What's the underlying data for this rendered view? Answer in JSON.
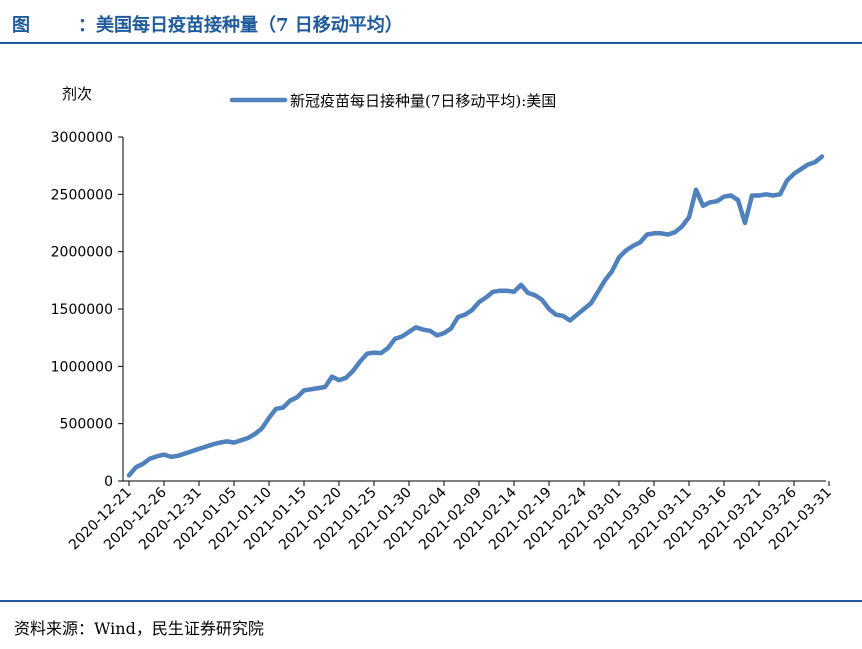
{
  "header": {
    "figure_label": "图",
    "title": "：美国每日疫苗接种量（7 日移动平均）"
  },
  "footer": {
    "source": "资料来源：Wind，民生证券研究院"
  },
  "colors": {
    "accent": "#1f5a9a",
    "series": "#4f81bd"
  },
  "chart_data": {
    "type": "line",
    "title": "美国每日疫苗接种量（7 日移动平均）",
    "ylabel": "剂次",
    "xlabel": "",
    "ylim": [
      0,
      3000000
    ],
    "yticks": [
      0,
      500000,
      1000000,
      1500000,
      2000000,
      2500000,
      3000000
    ],
    "ytick_labels": [
      "0",
      "500000",
      "1000000",
      "1500000",
      "2000000",
      "2500000",
      "3000000"
    ],
    "xtick_labels": [
      "2020-12-21",
      "2020-12-26",
      "2020-12-31",
      "2021-01-05",
      "2021-01-10",
      "2021-01-15",
      "2021-01-20",
      "2021-01-25",
      "2021-01-30",
      "2021-02-04",
      "2021-02-09",
      "2021-02-14",
      "2021-02-19",
      "2021-02-24",
      "2021-03-01",
      "2021-03-06",
      "2021-03-11",
      "2021-03-16",
      "2021-03-21",
      "2021-03-26",
      "2021-03-31"
    ],
    "grid": false,
    "legend_position": "top-center",
    "series": [
      {
        "name": "新冠疫苗每日接种量(7日移动平均):美国",
        "x_start": "2020-12-21",
        "x_step_days": 1,
        "values": [
          50000,
          120000,
          150000,
          195000,
          215000,
          230000,
          210000,
          220000,
          240000,
          260000,
          280000,
          300000,
          320000,
          335000,
          345000,
          335000,
          355000,
          375000,
          410000,
          460000,
          550000,
          630000,
          640000,
          700000,
          730000,
          790000,
          800000,
          810000,
          820000,
          910000,
          880000,
          900000,
          960000,
          1040000,
          1110000,
          1120000,
          1115000,
          1160000,
          1240000,
          1260000,
          1300000,
          1340000,
          1320000,
          1310000,
          1270000,
          1290000,
          1330000,
          1430000,
          1450000,
          1490000,
          1560000,
          1600000,
          1650000,
          1660000,
          1660000,
          1650000,
          1710000,
          1640000,
          1620000,
          1580000,
          1500000,
          1450000,
          1440000,
          1400000,
          1450000,
          1500000,
          1550000,
          1650000,
          1750000,
          1830000,
          1950000,
          2010000,
          2050000,
          2080000,
          2150000,
          2160000,
          2160000,
          2150000,
          2170000,
          2220000,
          2300000,
          2540000,
          2400000,
          2430000,
          2440000,
          2480000,
          2490000,
          2450000,
          2250000,
          2490000,
          2490000,
          2500000,
          2490000,
          2500000,
          2620000,
          2680000,
          2720000,
          2760000,
          2780000,
          2830000
        ]
      }
    ]
  }
}
